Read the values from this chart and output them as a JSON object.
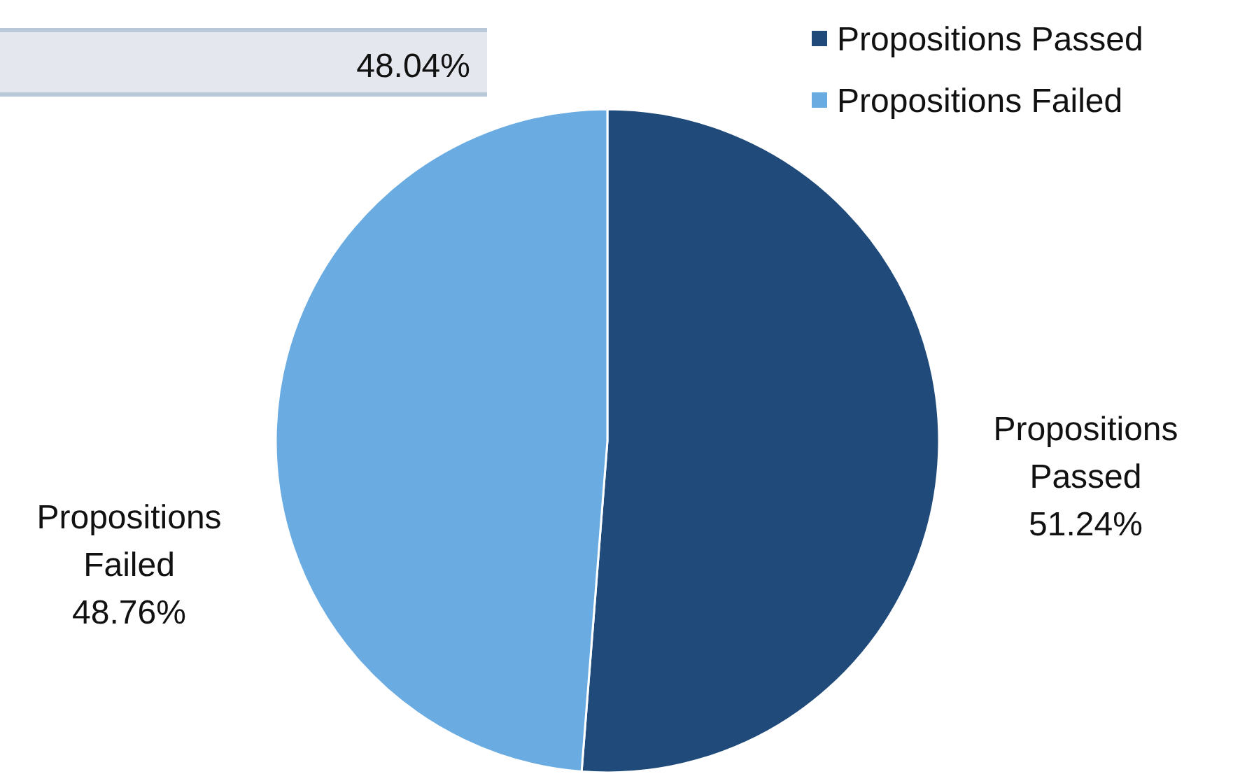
{
  "chart_data": {
    "type": "pie",
    "categories": [
      "Propositions Passed",
      "Propositions Failed"
    ],
    "values": [
      51.24,
      48.76
    ],
    "colors": [
      "#1f4a7a",
      "#6aace2"
    ],
    "data_labels": true,
    "value_labels": [
      "51.24%",
      "48.76%"
    ],
    "legend": "top right",
    "annotations": [
      "48.04%"
    ]
  }
}
